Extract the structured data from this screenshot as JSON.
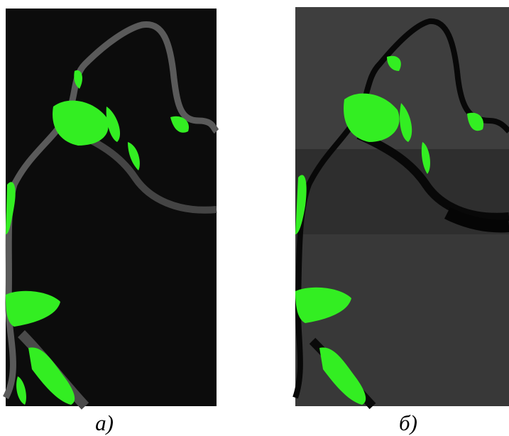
{
  "panels": [
    {
      "label": "а)"
    },
    {
      "label": "б)"
    }
  ]
}
